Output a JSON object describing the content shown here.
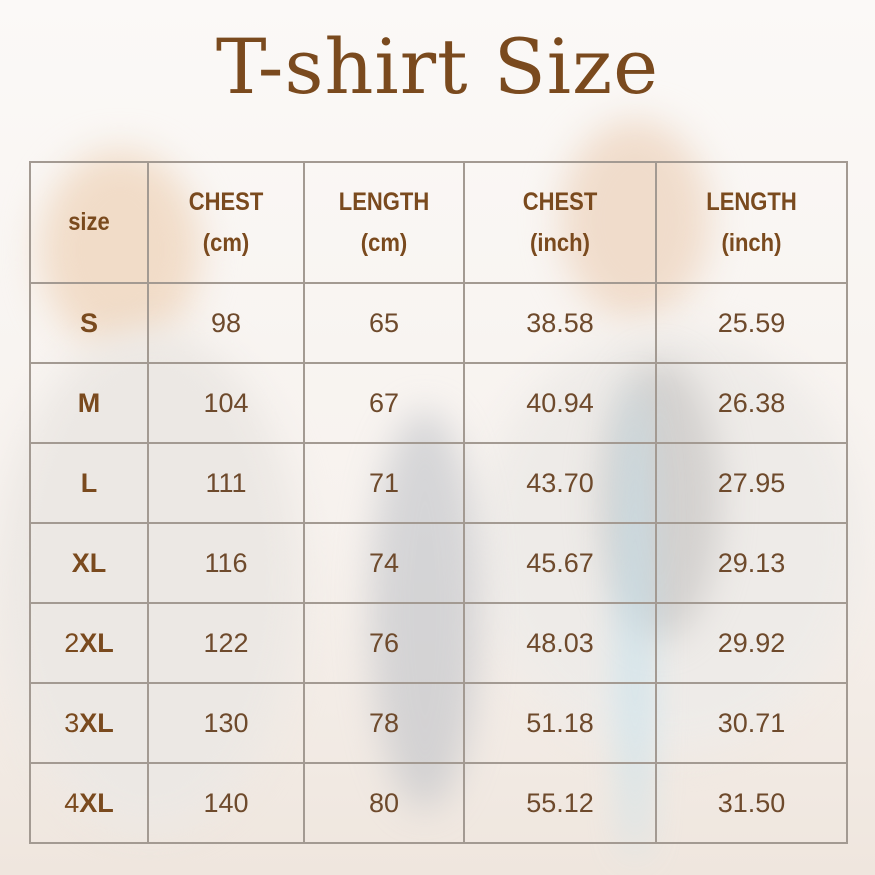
{
  "title": "T-shirt Size",
  "table": {
    "headers": [
      {
        "line1": "size",
        "line2": ""
      },
      {
        "line1": "CHEST",
        "line2": "(cm)"
      },
      {
        "line1": "LENGTH",
        "line2": "(cm)"
      },
      {
        "line1": "CHEST",
        "line2": "(inch)"
      },
      {
        "line1": "LENGTH",
        "line2": "(inch)"
      }
    ],
    "rows": [
      {
        "size_prefix": "",
        "size": "S",
        "chest_cm": "98",
        "length_cm": "65",
        "chest_in": "38.58",
        "length_in": "25.59"
      },
      {
        "size_prefix": "",
        "size": "M",
        "chest_cm": "104",
        "length_cm": "67",
        "chest_in": "40.94",
        "length_in": "26.38"
      },
      {
        "size_prefix": "",
        "size": "L",
        "chest_cm": "111",
        "length_cm": "71",
        "chest_in": "43.70",
        "length_in": "27.95"
      },
      {
        "size_prefix": "",
        "size": "XL",
        "chest_cm": "116",
        "length_cm": "74",
        "chest_in": "45.67",
        "length_in": "29.13"
      },
      {
        "size_prefix": "2",
        "size": "XL",
        "chest_cm": "122",
        "length_cm": "76",
        "chest_in": "48.03",
        "length_in": "29.92"
      },
      {
        "size_prefix": "3",
        "size": "XL",
        "chest_cm": "130",
        "length_cm": "78",
        "chest_in": "51.18",
        "length_in": "30.71"
      },
      {
        "size_prefix": "4",
        "size": "XL",
        "chest_cm": "140",
        "length_cm": "80",
        "chest_in": "55.12",
        "length_in": "31.50"
      }
    ]
  },
  "colors": {
    "title": "#7a4a1e",
    "grid": "#a39a92",
    "text": "#6e4a2c"
  }
}
